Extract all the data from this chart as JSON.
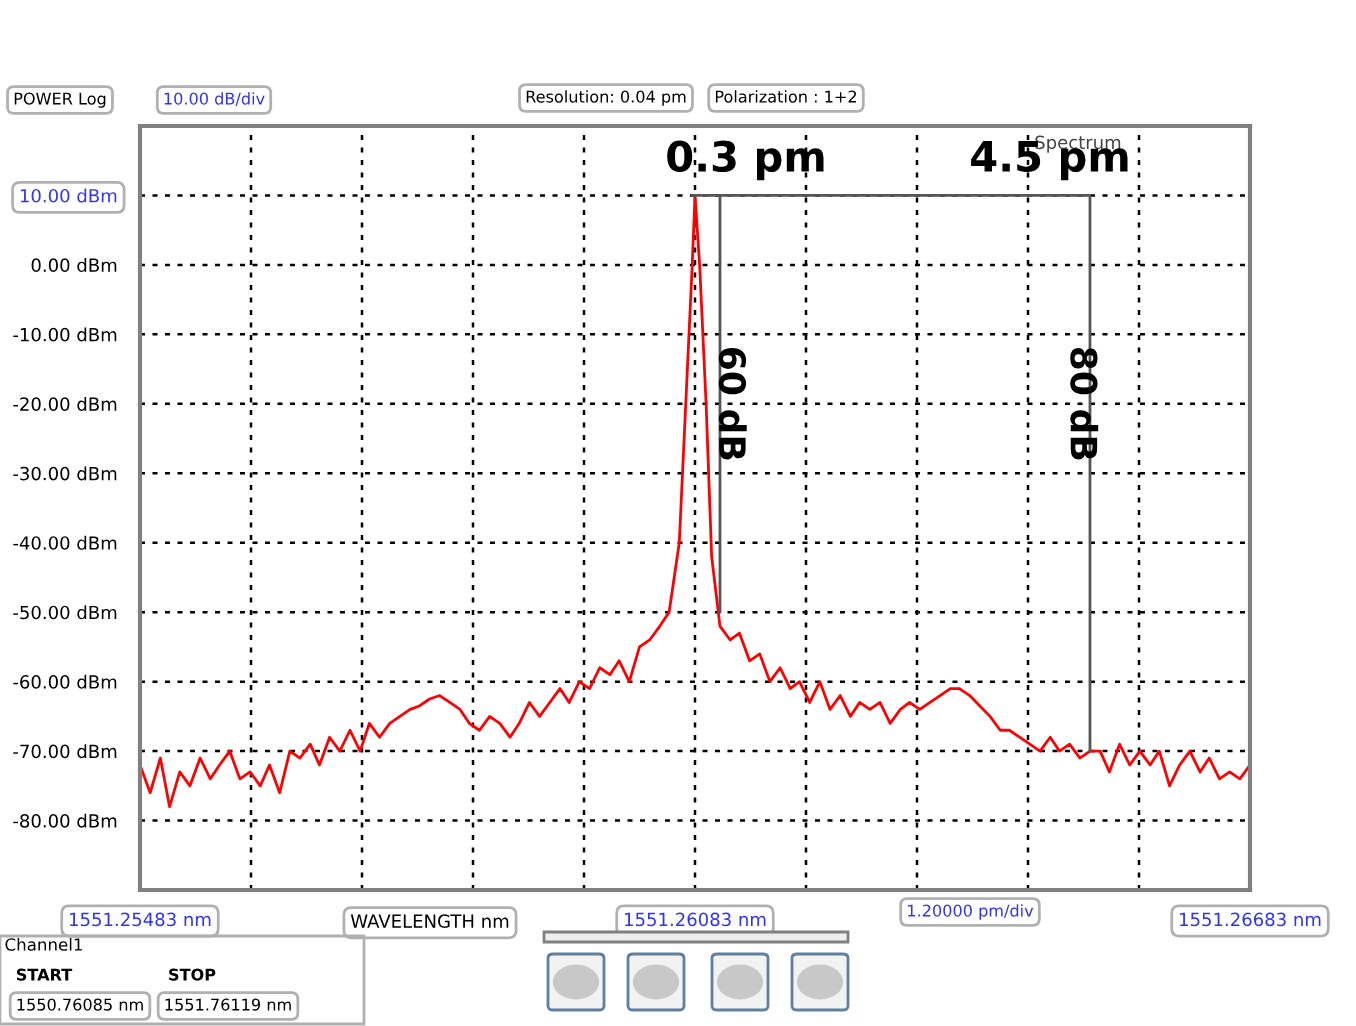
{
  "chart_data": {
    "type": "line",
    "title": "Spectrum",
    "xlabel": "WAVELENGTH nm",
    "xlim": [
      1551.25483,
      1551.26683
    ],
    "ylim": [
      -90,
      20
    ],
    "xticks": [
      {
        "value": 1551.25483,
        "label": "1551.25483 nm"
      },
      {
        "value": 1551.25603,
        "label": null
      },
      {
        "value": 1551.25723,
        "label": null
      },
      {
        "value": 1551.25843,
        "label": null
      },
      {
        "value": 1551.25963,
        "label": null
      },
      {
        "value": 1551.26083,
        "label": "1551.26083 nm"
      },
      {
        "value": 1551.26203,
        "label": null
      },
      {
        "value": 1551.26323,
        "label": null
      },
      {
        "value": 1551.26443,
        "label": null
      },
      {
        "value": 1551.26563,
        "label": null
      },
      {
        "value": 1551.26683,
        "label": "1551.26683 nm"
      }
    ],
    "yticks": [
      {
        "value": 10,
        "label": "10.00 dBm"
      },
      {
        "value": 0,
        "label": "0.00 dBm"
      },
      {
        "value": -10,
        "label": "-10.00 dBm"
      },
      {
        "value": -20,
        "label": "-20.00 dBm"
      },
      {
        "value": -30,
        "label": "-30.00 dBm"
      },
      {
        "value": -40,
        "label": "-40.00 dBm"
      },
      {
        "value": -50,
        "label": "-50.00 dBm"
      },
      {
        "value": -60,
        "label": "-60.00 dBm"
      },
      {
        "value": -70,
        "label": "-70.00 dBm"
      },
      {
        "value": -80,
        "label": "-80.00 dBm"
      }
    ],
    "grid": true,
    "marker": "none",
    "line_style": "solid",
    "series": [
      {
        "color": "#ff0000",
        "x": [
          1551.25483,
          1551.25494,
          1551.25505,
          1551.25515,
          1551.25526,
          1551.25537,
          1551.25548,
          1551.25559,
          1551.25569,
          1551.2558,
          1551.25591,
          1551.25602,
          1551.25613,
          1551.25623,
          1551.25634,
          1551.25645,
          1551.25656,
          1551.25667,
          1551.25677,
          1551.25688,
          1551.25699,
          1551.2571,
          1551.25721,
          1551.25731,
          1551.25742,
          1551.25753,
          1551.25764,
          1551.25775,
          1551.25785,
          1551.25796,
          1551.25807,
          1551.25818,
          1551.25829,
          1551.25839,
          1551.2585,
          1551.25861,
          1551.25872,
          1551.25883,
          1551.25893,
          1551.25904,
          1551.25915,
          1551.25926,
          1551.25937,
          1551.25947,
          1551.25958,
          1551.25969,
          1551.2598,
          1551.25991,
          1551.26001,
          1551.26012,
          1551.26023,
          1551.26034,
          1551.26045,
          1551.26055,
          1551.26066,
          1551.26073,
          1551.2608,
          1551.26083,
          1551.26088,
          1551.26095,
          1551.26101,
          1551.2611,
          1551.26121,
          1551.26131,
          1551.26142,
          1551.26153,
          1551.26164,
          1551.26175,
          1551.26186,
          1551.26196,
          1551.26207,
          1551.26218,
          1551.26229,
          1551.2624,
          1551.26251,
          1551.26261,
          1551.26272,
          1551.26283,
          1551.26294,
          1551.26305,
          1551.26315,
          1551.26326,
          1551.26337,
          1551.26348,
          1551.26359,
          1551.26369,
          1551.2638,
          1551.26391,
          1551.26402,
          1551.26413,
          1551.26423,
          1551.26434,
          1551.26445,
          1551.26456,
          1551.26467,
          1551.26477,
          1551.26488,
          1551.26499,
          1551.2651,
          1551.26521,
          1551.26531,
          1551.26542,
          1551.26553,
          1551.26564,
          1551.26575,
          1551.26585,
          1551.26596,
          1551.26607,
          1551.26618,
          1551.26629,
          1551.26639,
          1551.2665,
          1551.26661,
          1551.26672,
          1551.26683
        ],
        "values": [
          -72,
          -76,
          -71,
          -78,
          -73,
          -75,
          -71,
          -74,
          -72,
          -70,
          -74,
          -73,
          -75,
          -72,
          -76,
          -70,
          -71,
          -69,
          -72,
          -68,
          -70,
          -67,
          -70,
          -66,
          -68,
          -66,
          -65,
          -64,
          -63.5,
          -62.5,
          -62,
          -63,
          -64,
          -66,
          -67,
          -65,
          -66,
          -68,
          -66,
          -63,
          -65,
          -63,
          -61,
          -63,
          -60,
          -61,
          -58,
          -59,
          -57,
          -60,
          -55,
          -54,
          -52,
          -50,
          -40,
          -20,
          0,
          10,
          0,
          -20,
          -42,
          -52,
          -54,
          -53,
          -57,
          -56,
          -60,
          -58,
          -61,
          -60,
          -63,
          -60,
          -64,
          -62,
          -65,
          -63,
          -64,
          -63,
          -66,
          -64,
          -63,
          -64,
          -63,
          -62,
          -61,
          -61,
          -62,
          -63.5,
          -65,
          -67,
          -67,
          -68,
          -69,
          -70,
          -68,
          -70,
          -69,
          -71,
          -70,
          -70,
          -73,
          -69,
          -72,
          -70,
          -72,
          -70,
          -75,
          -72,
          -70,
          -73,
          -71,
          -74,
          -73,
          -74,
          -72
        ]
      },
      {
        "color": "#555555",
        "x": [
          1551.2608,
          1551.2611,
          1551.2611
        ],
        "values": [
          10,
          10,
          -50
        ]
      },
      {
        "color": "#555555",
        "x": [
          1551.2611,
          1551.2651,
          1551.2651
        ],
        "values": [
          10,
          10,
          -70
        ]
      }
    ],
    "annotations": [
      "0.3 pm",
      "4.5 pm",
      {
        "text": "60 dB",
        "x": 1551.2612,
        "y": -20
      },
      {
        "text": "80 dB",
        "x": 1551.265,
        "y": -20
      },
      "POWER Log",
      "10.00 dB/div",
      "Resolution: 0.04 pm",
      "Polarization : 1+2",
      "1.20000 pm/div",
      "Channel1",
      "START",
      "STOP",
      "1550.76085 nm",
      "1551.76119 nm"
    ]
  }
}
